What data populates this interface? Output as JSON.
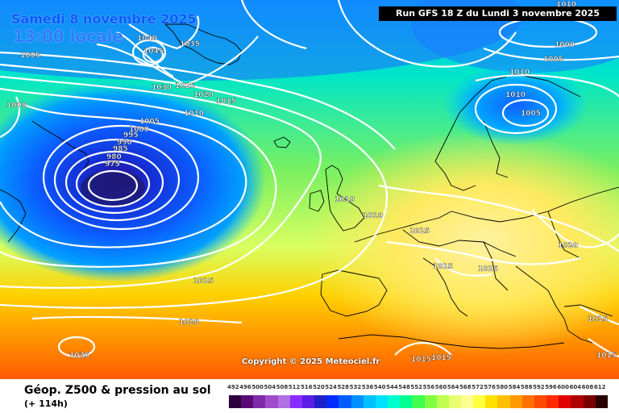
{
  "header": {
    "date": "Samedi 8 novembre 2025",
    "time": "13:00 locale",
    "run": "Run GFS 18 Z du Lundi 3 novembre 2025"
  },
  "footer": {
    "title": "Géop. Z500 & pression au sol",
    "offset": "(+ 114h)"
  },
  "copyright": "Copyright © 2025 Meteociel.fr",
  "scale": {
    "ticks": [
      "492",
      "496",
      "500",
      "504",
      "508",
      "512",
      "516",
      "520",
      "524",
      "528",
      "532",
      "536",
      "540",
      "544",
      "548",
      "552",
      "556",
      "560",
      "564",
      "568",
      "572",
      "576",
      "580",
      "584",
      "588",
      "592",
      "596",
      "600",
      "604",
      "608",
      "612"
    ],
    "colors": [
      "#2d003d",
      "#5a0a75",
      "#7f2aa8",
      "#9f4ccc",
      "#b06ee3",
      "#8a2bff",
      "#5a1ee8",
      "#2020c8",
      "#002bff",
      "#005cff",
      "#0090ff",
      "#00c0ff",
      "#00e0ff",
      "#00ffd0",
      "#00ff90",
      "#40ff50",
      "#80ff40",
      "#c0ff50",
      "#e8ff70",
      "#ffff90",
      "#ffff40",
      "#ffe000",
      "#ffc000",
      "#ff9a00",
      "#ff7000",
      "#ff4a00",
      "#ff2a00",
      "#e00000",
      "#b00000",
      "#7a0000",
      "#2a0000"
    ]
  },
  "isobar_labels": [
    {
      "text": "1040"
    },
    {
      "text": "1045"
    },
    {
      "text": "1035"
    },
    {
      "text": "1030"
    },
    {
      "text": "1025"
    },
    {
      "text": "1020"
    },
    {
      "text": "1015"
    },
    {
      "text": "1010"
    },
    {
      "text": "1005"
    },
    {
      "text": "1000"
    },
    {
      "text": "995"
    },
    {
      "text": "990"
    },
    {
      "text": "985"
    },
    {
      "text": "980"
    },
    {
      "text": "975"
    },
    {
      "text": "1005"
    },
    {
      "text": "1000"
    },
    {
      "text": "1010"
    },
    {
      "text": "1010"
    },
    {
      "text": "1015"
    },
    {
      "text": "1015"
    },
    {
      "text": "1015"
    },
    {
      "text": "1020"
    },
    {
      "text": "1015"
    },
    {
      "text": "1020"
    },
    {
      "text": "1025"
    },
    {
      "text": "1015"
    },
    {
      "text": "1015"
    },
    {
      "text": "1015"
    },
    {
      "text": "1015"
    },
    {
      "text": "1010"
    },
    {
      "text": "1000"
    },
    {
      "text": "1005"
    },
    {
      "text": "1010"
    },
    {
      "text": "1010"
    },
    {
      "text": "1005"
    }
  ]
}
